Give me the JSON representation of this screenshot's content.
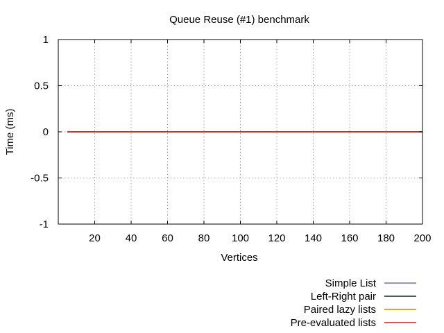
{
  "chart_data": {
    "type": "line",
    "title": "Queue Reuse (#1) benchmark",
    "xlabel": "Vertices",
    "ylabel": "Time (ms)",
    "xlim": [
      0,
      200
    ],
    "ylim": [
      -1,
      1
    ],
    "xticks": [
      20,
      40,
      60,
      80,
      100,
      120,
      140,
      160,
      180,
      200
    ],
    "yticks": [
      1,
      0.5,
      0,
      -0.5,
      -1
    ],
    "ytick_labels": [
      "1",
      "0.5",
      "0",
      "-0.5",
      "-1"
    ],
    "grid": true,
    "legend_position": "below-right",
    "series": [
      {
        "name": "Simple List",
        "color": "#7b68c8",
        "x": [
          5,
          200
        ],
        "y": [
          0,
          0
        ]
      },
      {
        "name": "Left-Right pair",
        "color": "#0d2a1c",
        "x": [
          5,
          200
        ],
        "y": [
          0,
          0
        ]
      },
      {
        "name": "Paired lazy lists",
        "color": "#c08a10",
        "x": [
          5,
          200
        ],
        "y": [
          0,
          0
        ]
      },
      {
        "name": "Pre-evaluated lists",
        "color": "#d02020",
        "x": [
          5,
          200
        ],
        "y": [
          0,
          0
        ]
      }
    ]
  }
}
